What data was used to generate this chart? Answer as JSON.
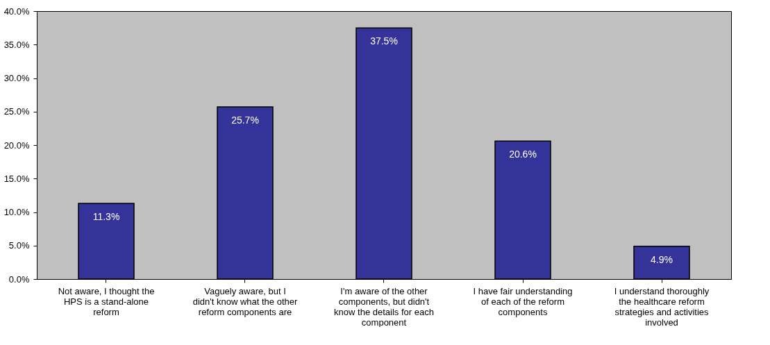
{
  "chart_data": {
    "type": "bar",
    "categories": [
      "Not aware, I thought the HPS is a stand-alone reform",
      "Vaguely aware, but I didn't know what the other reform components are",
      "I'm aware of the other components, but didn't know the details for each component",
      "I have fair understanding of each of the reform components",
      "I understand thoroughly the healthcare reform strategies and activities involved"
    ],
    "values": [
      11.3,
      25.7,
      37.5,
      20.6,
      4.9
    ],
    "value_labels": [
      "11.3%",
      "25.7%",
      "37.5%",
      "20.6%",
      "4.9%"
    ],
    "color": "#333399",
    "ylim": [
      0,
      40
    ],
    "yticks": [
      {
        "value": 0,
        "label": "0.0%"
      },
      {
        "value": 5,
        "label": "5.0%"
      },
      {
        "value": 10,
        "label": "10.0%"
      },
      {
        "value": 15,
        "label": "15.0%"
      },
      {
        "value": 20,
        "label": "20.0%"
      },
      {
        "value": 25,
        "label": "25.0%"
      },
      {
        "value": 30,
        "label": "30.0%"
      },
      {
        "value": 35,
        "label": "35.0%"
      },
      {
        "value": 40,
        "label": "40.0%"
      }
    ],
    "grid": false
  }
}
